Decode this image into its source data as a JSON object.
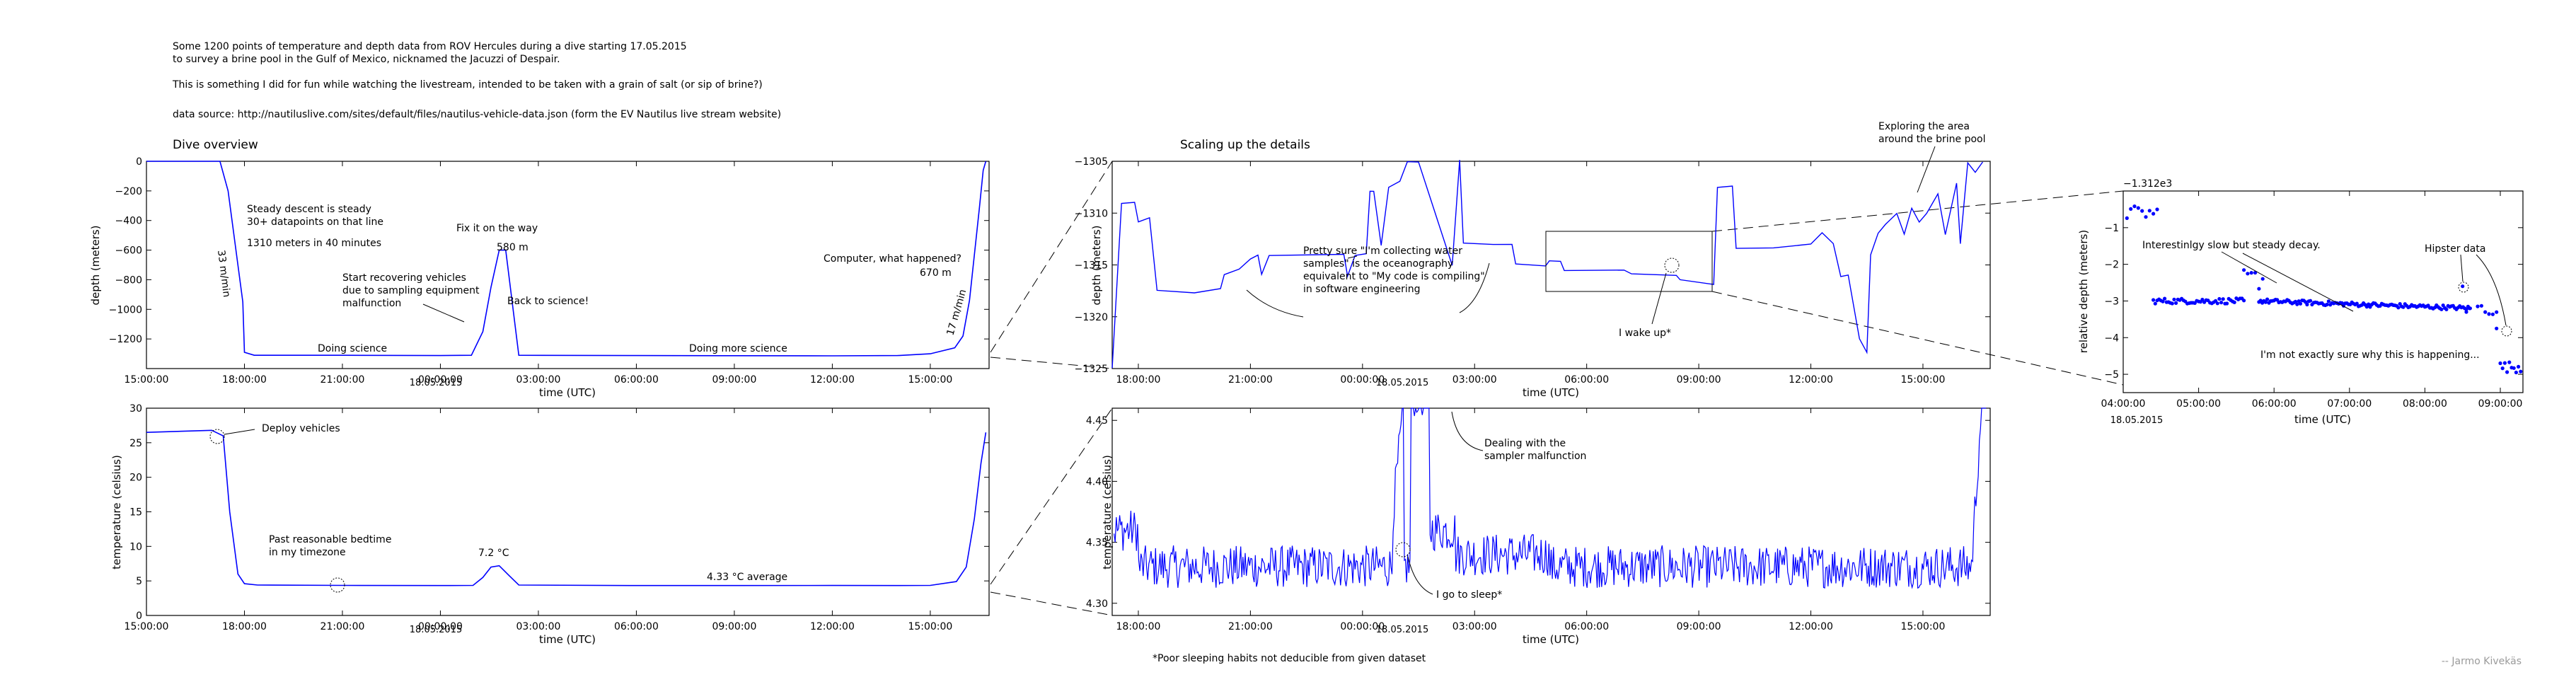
{
  "header": {
    "line1": "Some 1200 points of temperature and depth data from ROV Hercules during a dive starting 17.05.2015",
    "line2": "to survey a brine pool in the Gulf of Mexico, nicknamed the Jacuzzi of Despair.",
    "line3": "This is something I did for fun while watching the livestream, intended to be taken with a grain of salt (or sip of brine?)",
    "line4": "data source: http://nautiluslive.com/sites/default/files/nautilus-vehicle-data.json (form the EV Nautilus live stream website)"
  },
  "footer": {
    "footnote": "*Poor sleeping habits not deducible from given dataset",
    "credit": "-- Jarmo Kivekäs"
  },
  "colors": {
    "series": "#0000ff",
    "axis": "#000000",
    "annotation": "#000000"
  },
  "chart_data": [
    {
      "id": "dive-overview",
      "type": "line",
      "title": "Dive overview",
      "xlabel": "time (UTC)",
      "ylabel": "depth (meters)",
      "xticks": [
        "15:00:00",
        "18:00:00",
        "21:00:00",
        "00:00:00",
        "03:00:00",
        "06:00:00",
        "09:00:00",
        "12:00:00",
        "15:00:00"
      ],
      "date_label": "18.05.2015",
      "xlim_hours": [
        15,
        40.8
      ],
      "ylim": [
        -1400,
        0
      ],
      "yticks": [
        "0",
        "−200",
        "−400",
        "−600",
        "−800",
        "−1000",
        "−1200"
      ],
      "series": [
        {
          "x_hours": [
            15,
            17.25,
            17.5,
            17.95,
            18.0,
            18.3,
            21.0,
            24.0,
            24.95,
            25.3,
            25.55,
            25.8,
            26.0,
            26.4,
            30.0,
            33.0,
            36.0,
            38.0,
            39.0,
            39.75,
            40.0,
            40.2,
            40.5,
            40.62,
            40.7
          ],
          "values": [
            0,
            0,
            -200,
            -950,
            -1290,
            -1310,
            -1310,
            -1312,
            -1310,
            -1150,
            -850,
            -600,
            -600,
            -1310,
            -1312,
            -1313,
            -1314,
            -1312,
            -1300,
            -1260,
            -1180,
            -940,
            -320,
            -60,
            0
          ]
        }
      ],
      "annotations": [
        {
          "text": "Steady descent is steady"
        },
        {
          "text": "30+ datapoints on that line"
        },
        {
          "text": "1310 meters in 40 minutes"
        },
        {
          "text": "33 m/min"
        },
        {
          "text": "Fix it on the way"
        },
        {
          "text": "580 m"
        },
        {
          "text": "Start recovering vehicles"
        },
        {
          "text": "due to sampling equipment"
        },
        {
          "text": "malfunction"
        },
        {
          "text": "Back to science!"
        },
        {
          "text": "Doing science"
        },
        {
          "text": "Doing more science"
        },
        {
          "text": "Computer, what happened?"
        },
        {
          "text": "670 m"
        },
        {
          "text": "17 m/min"
        }
      ]
    },
    {
      "id": "temperature-overview",
      "type": "line",
      "xlabel": "time (UTC)",
      "ylabel": "temperature (celsius)",
      "xticks": [
        "15:00:00",
        "18:00:00",
        "21:00:00",
        "00:00:00",
        "03:00:00",
        "06:00:00",
        "09:00:00",
        "12:00:00",
        "15:00:00"
      ],
      "date_label": "18.05.2015",
      "xlim_hours": [
        15,
        40.8
      ],
      "ylim": [
        0,
        30
      ],
      "yticks": [
        "0",
        "5",
        "10",
        "15",
        "20",
        "25",
        "30"
      ],
      "series": [
        {
          "x_hours": [
            15,
            17.0,
            17.35,
            17.55,
            17.8,
            18.0,
            18.4,
            21.0,
            24.0,
            25.0,
            25.3,
            25.55,
            25.8,
            26.1,
            26.4,
            30.0,
            33.0,
            36.0,
            38.0,
            39.0,
            39.8,
            40.1,
            40.35,
            40.55,
            40.7
          ],
          "values": [
            26.5,
            26.8,
            26.0,
            15.0,
            6.0,
            4.6,
            4.4,
            4.35,
            4.33,
            4.35,
            5.5,
            7.0,
            7.2,
            5.8,
            4.4,
            4.33,
            4.33,
            4.34,
            4.33,
            4.35,
            4.9,
            7.0,
            14.0,
            22.0,
            26.5
          ]
        }
      ],
      "annotations": [
        {
          "text": "Deploy vehicles"
        },
        {
          "text": "Past reasonable bedtime"
        },
        {
          "text": "in my timezone"
        },
        {
          "text": "7.2 °C"
        },
        {
          "text": "4.33 °C average"
        }
      ]
    },
    {
      "id": "depth-detail",
      "type": "line",
      "title": "Scaling up the details",
      "xlabel": "time (UTC)",
      "ylabel": "depth (meters)",
      "xticks": [
        "18:00:00",
        "21:00:00",
        "00:00:00",
        "03:00:00",
        "06:00:00",
        "09:00:00",
        "12:00:00",
        "15:00:00"
      ],
      "date_label": "18.05.2015",
      "xlim_hours": [
        17.3,
        40.8
      ],
      "ylim": [
        -1325,
        -1305
      ],
      "yticks": [
        "−1305",
        "−1310",
        "−1315",
        "−1320",
        "−1325"
      ],
      "annotations": [
        {
          "text": "Pretty sure \"I'm collecting water"
        },
        {
          "text": "samples\" is the oceanography"
        },
        {
          "text": "equivalent to \"My code is compiling\""
        },
        {
          "text": "in software engineering"
        },
        {
          "text": "I wake up*"
        },
        {
          "text": "Exploring the area"
        },
        {
          "text": "around the brine pool"
        }
      ]
    },
    {
      "id": "temperature-detail",
      "type": "line",
      "xlabel": "time (UTC)",
      "ylabel": "temperature (celsius)",
      "xticks": [
        "18:00:00",
        "21:00:00",
        "00:00:00",
        "03:00:00",
        "06:00:00",
        "09:00:00",
        "12:00:00",
        "15:00:00"
      ],
      "date_label": "18.05.2015",
      "xlim_hours": [
        17.3,
        40.8
      ],
      "ylim": [
        4.29,
        4.46
      ],
      "yticks": [
        "4.30",
        "4.35",
        "4.40",
        "4.45"
      ],
      "annotations": [
        {
          "text": "Dealing with the"
        },
        {
          "text": "sampler malfunction"
        },
        {
          "text": "I go to sleep*"
        }
      ]
    },
    {
      "id": "relative-depth",
      "type": "scatter",
      "offset_label": "−1.312e3",
      "xlabel": "time (UTC)",
      "ylabel": "relative depth (meters)",
      "xticks": [
        "04:00:00",
        "05:00:00",
        "06:00:00",
        "07:00:00",
        "08:00:00",
        "09:00:00"
      ],
      "date_label": "18.05.2015",
      "xlim_hours": [
        28.0,
        33.3
      ],
      "ylim": [
        -5.5,
        0
      ],
      "yticks": [
        "−1",
        "−2",
        "−3",
        "−4",
        "−5"
      ],
      "annotations": [
        {
          "text": "Interestinlgy slow but steady decay."
        },
        {
          "text": "Hipster data"
        },
        {
          "text": "I'm not exactly sure why this is happening..."
        }
      ]
    }
  ]
}
